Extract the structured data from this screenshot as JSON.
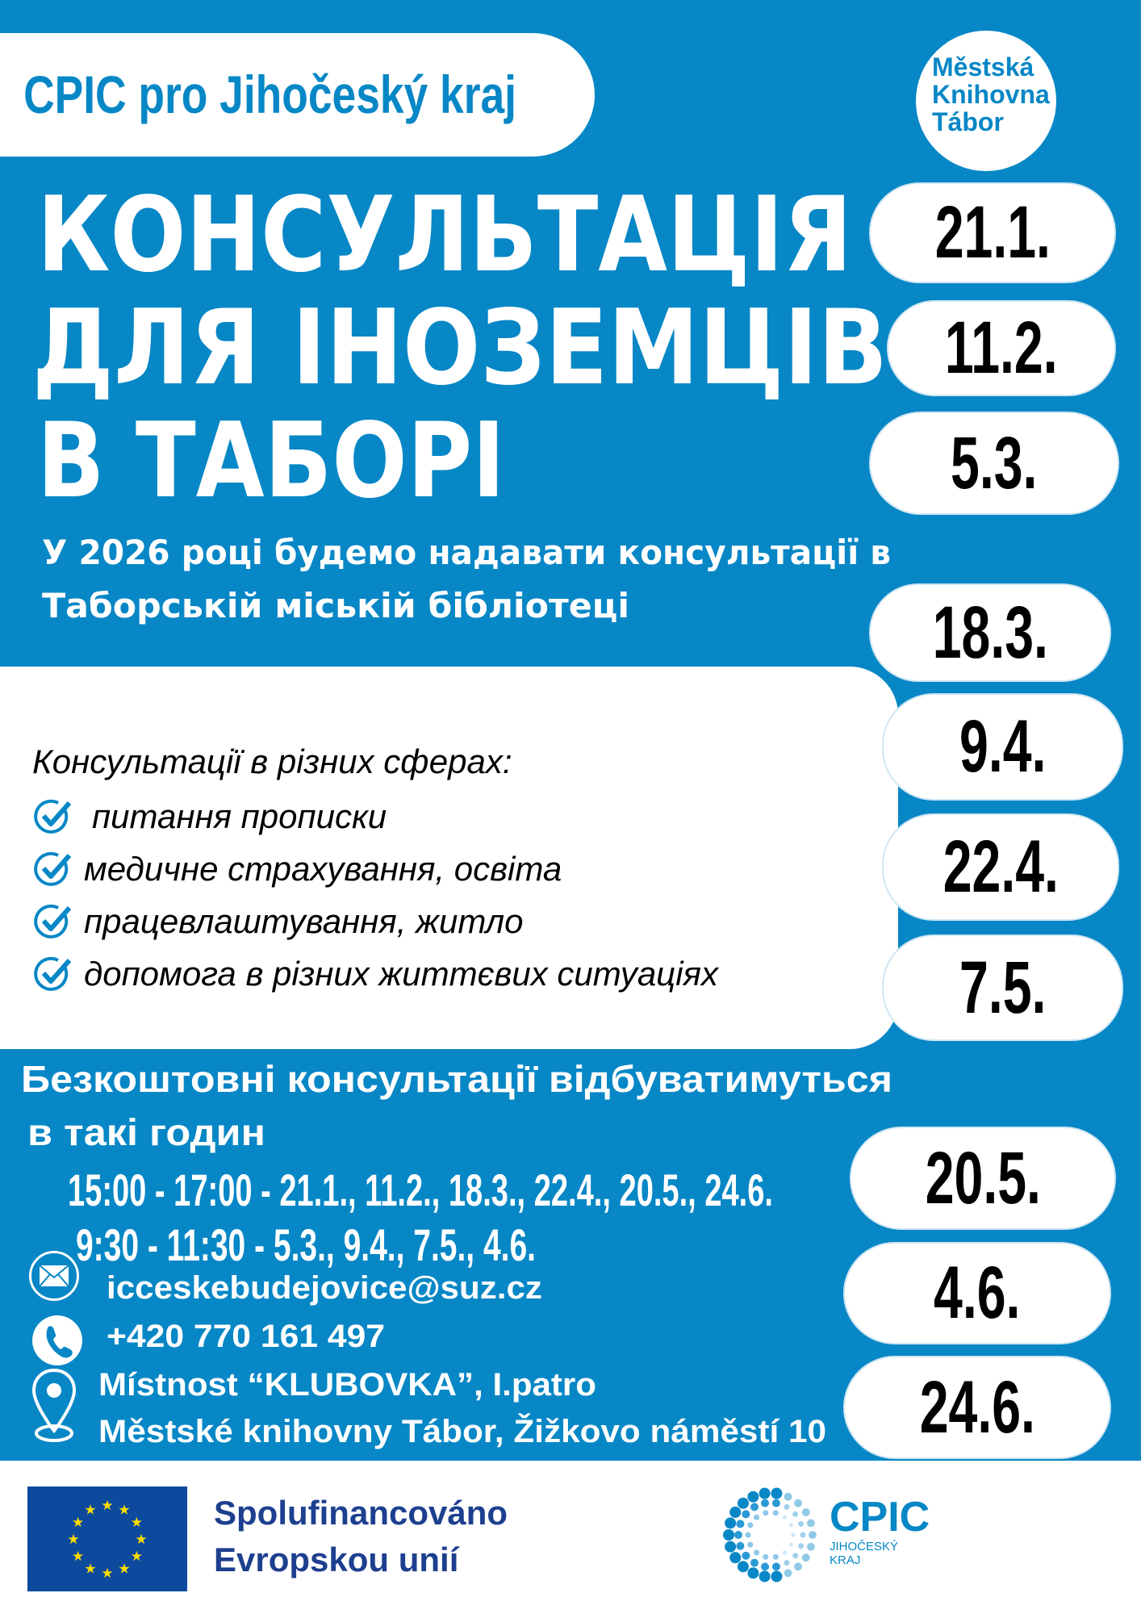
{
  "header": {
    "org_title": "CPIC pro Jihočeský kraj",
    "library_logo": [
      "Městská",
      "Knihovna",
      "Tábor"
    ]
  },
  "title": {
    "lines": [
      "КОНСУЛЬТАЦІЯ",
      "ДЛЯ ІНОЗЕМЦІВ",
      "В ТАБОРІ"
    ]
  },
  "subtitle": {
    "lines": [
      "У 2026 році будемо надавати консультації в",
      "Таборській міській бібліотеці"
    ]
  },
  "dates": [
    "21.1.",
    "11.2.",
    "5.3.",
    "18.3.",
    "9.4.",
    "22.4.",
    "7.5.",
    "20.5.",
    "4.6.",
    "24.6."
  ],
  "spheres": {
    "heading": "Консультації в різних сферах:",
    "items": [
      "питання прописки",
      "медичне страхування, освіта",
      "працевлаштування, житло",
      "допомога в різних життєвих ситуаціях"
    ]
  },
  "schedule": {
    "heading": [
      "Безкоштовні консультації відбуватимуться",
      "в такі годин"
    ],
    "rows": [
      "15:00 - 17:00 - 21.1., 11.2., 18.3., 22.4., 20.5., 24.6.",
      "9:30 - 11:30 - 5.3., 9.4., 7.5., 4.6."
    ]
  },
  "contact": {
    "email": "icceskebudejovice@suz.cz",
    "phone": "+420 770 161 497",
    "place_line1": "Místnost “KLUBOVKA”, I.patro",
    "place_line2": "Městské knihovny Tábor, Žižkovo náměstí 10"
  },
  "footer": {
    "eu_text": [
      "Spolufinancováno",
      "Evropskou unií"
    ],
    "cpic_logo": {
      "name": "CPIC",
      "region": [
        "JIHOČESKÝ",
        "KRAJ"
      ]
    }
  },
  "colors": {
    "brand_blue": "#0787c6",
    "eu_blue": "#0d4a9e",
    "eu_star": "#ffdd00",
    "text_dark_blue": "#1d3f8f"
  }
}
